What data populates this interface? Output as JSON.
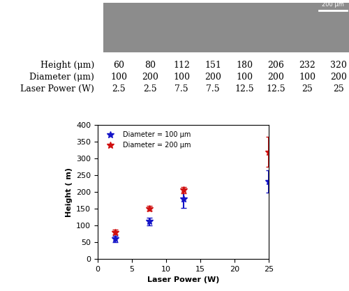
{
  "table": {
    "scale_bar": "200 μm",
    "rows": [
      {
        "label": "Height (μm)",
        "values": [
          60,
          80,
          112,
          151,
          180,
          206,
          232,
          320
        ]
      },
      {
        "label": "Diameter (μm)",
        "values": [
          100,
          200,
          100,
          200,
          100,
          200,
          100,
          200
        ]
      },
      {
        "label": "Laser Power (W)",
        "values": [
          2.5,
          2.5,
          7.5,
          7.5,
          12.5,
          12.5,
          25,
          25
        ]
      }
    ]
  },
  "chart_data": {
    "type": "scatter",
    "x_label": "Laser Power (W)",
    "y_label": "Height ( m)",
    "xlim": [
      0,
      25
    ],
    "xticks": [
      0,
      5,
      10,
      15,
      20,
      25
    ],
    "ylim": [
      0,
      400
    ],
    "yticks": [
      0,
      50,
      100,
      150,
      200,
      250,
      300,
      350,
      400
    ],
    "legend": "upper left",
    "series": [
      {
        "name": "Diameter = 100 μm",
        "color": "#1515c8",
        "marker": "star",
        "x": [
          2.5,
          7.5,
          12.5,
          25
        ],
        "values": [
          60,
          112,
          180,
          232
        ],
        "errors": [
          10,
          12,
          28,
          33
        ]
      },
      {
        "name": "Diameter = 200 μm",
        "color": "#d01010",
        "marker": "star",
        "x": [
          2.5,
          7.5,
          12.5,
          25
        ],
        "values": [
          80,
          151,
          206,
          320
        ],
        "errors": [
          7,
          7,
          9,
          45
        ]
      }
    ]
  }
}
